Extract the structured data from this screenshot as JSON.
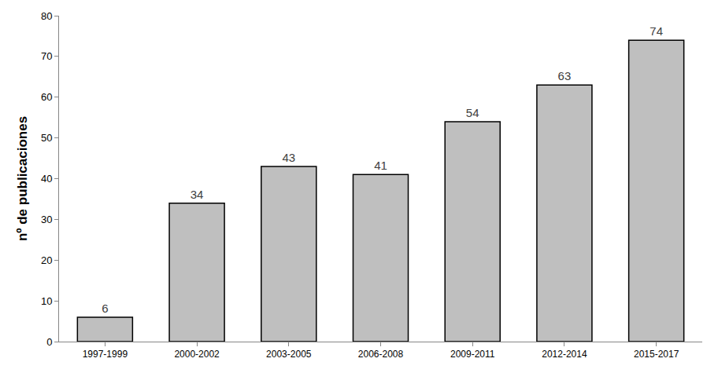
{
  "chart_data": {
    "type": "bar",
    "y_label": "nº de publicaciones",
    "categories": [
      "1997-1999",
      "2000-2002",
      "2003-2005",
      "2006-2008",
      "2009-2011",
      "2012-2014",
      "2015-2017"
    ],
    "values": [
      6,
      34,
      43,
      41,
      54,
      63,
      74
    ],
    "color": "#bfbfbf",
    "ylim": [
      0,
      80
    ],
    "yticks": [
      0,
      10,
      20,
      30,
      40,
      50,
      60,
      70,
      80
    ],
    "grid": false,
    "data_labels": true
  }
}
